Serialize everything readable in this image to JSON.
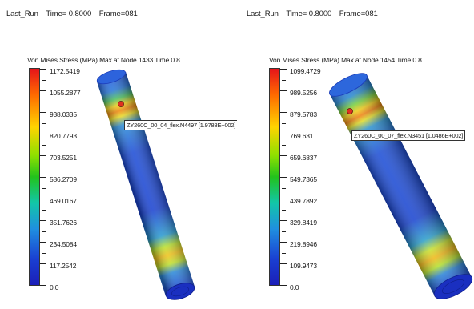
{
  "panels": [
    {
      "header": {
        "run": "Last_Run",
        "time": "Time= 0.8000",
        "frame": "Frame=081"
      },
      "legend": {
        "title": "Von Mises Stress (MPa) Max at Node 1433 Time 0.8",
        "labels": [
          "1172.5419",
          "1055.2877",
          "938.0335",
          "820.7793",
          "703.5251",
          "586.2709",
          "469.0167",
          "351.7626",
          "234.5084",
          "117.2542",
          "0.0"
        ]
      },
      "callout": "ZY260C_00_04_flex.N4497 [1.9788E+002]"
    },
    {
      "header": {
        "run": "Last_Run",
        "time": "Time= 0.8000",
        "frame": "Frame=081"
      },
      "legend": {
        "title": "Von Mises Stress (MPa) Max at Node 1454 Time 0.8",
        "labels": [
          "1099.4729",
          "989.5256",
          "879.5783",
          "769.631",
          "659.6837",
          "549.7365",
          "439.7892",
          "329.8419",
          "219.8946",
          "109.9473",
          "0.0"
        ]
      },
      "callout": "ZY260C_00_07_flex.N3451 [1.0486E+002]"
    }
  ]
}
